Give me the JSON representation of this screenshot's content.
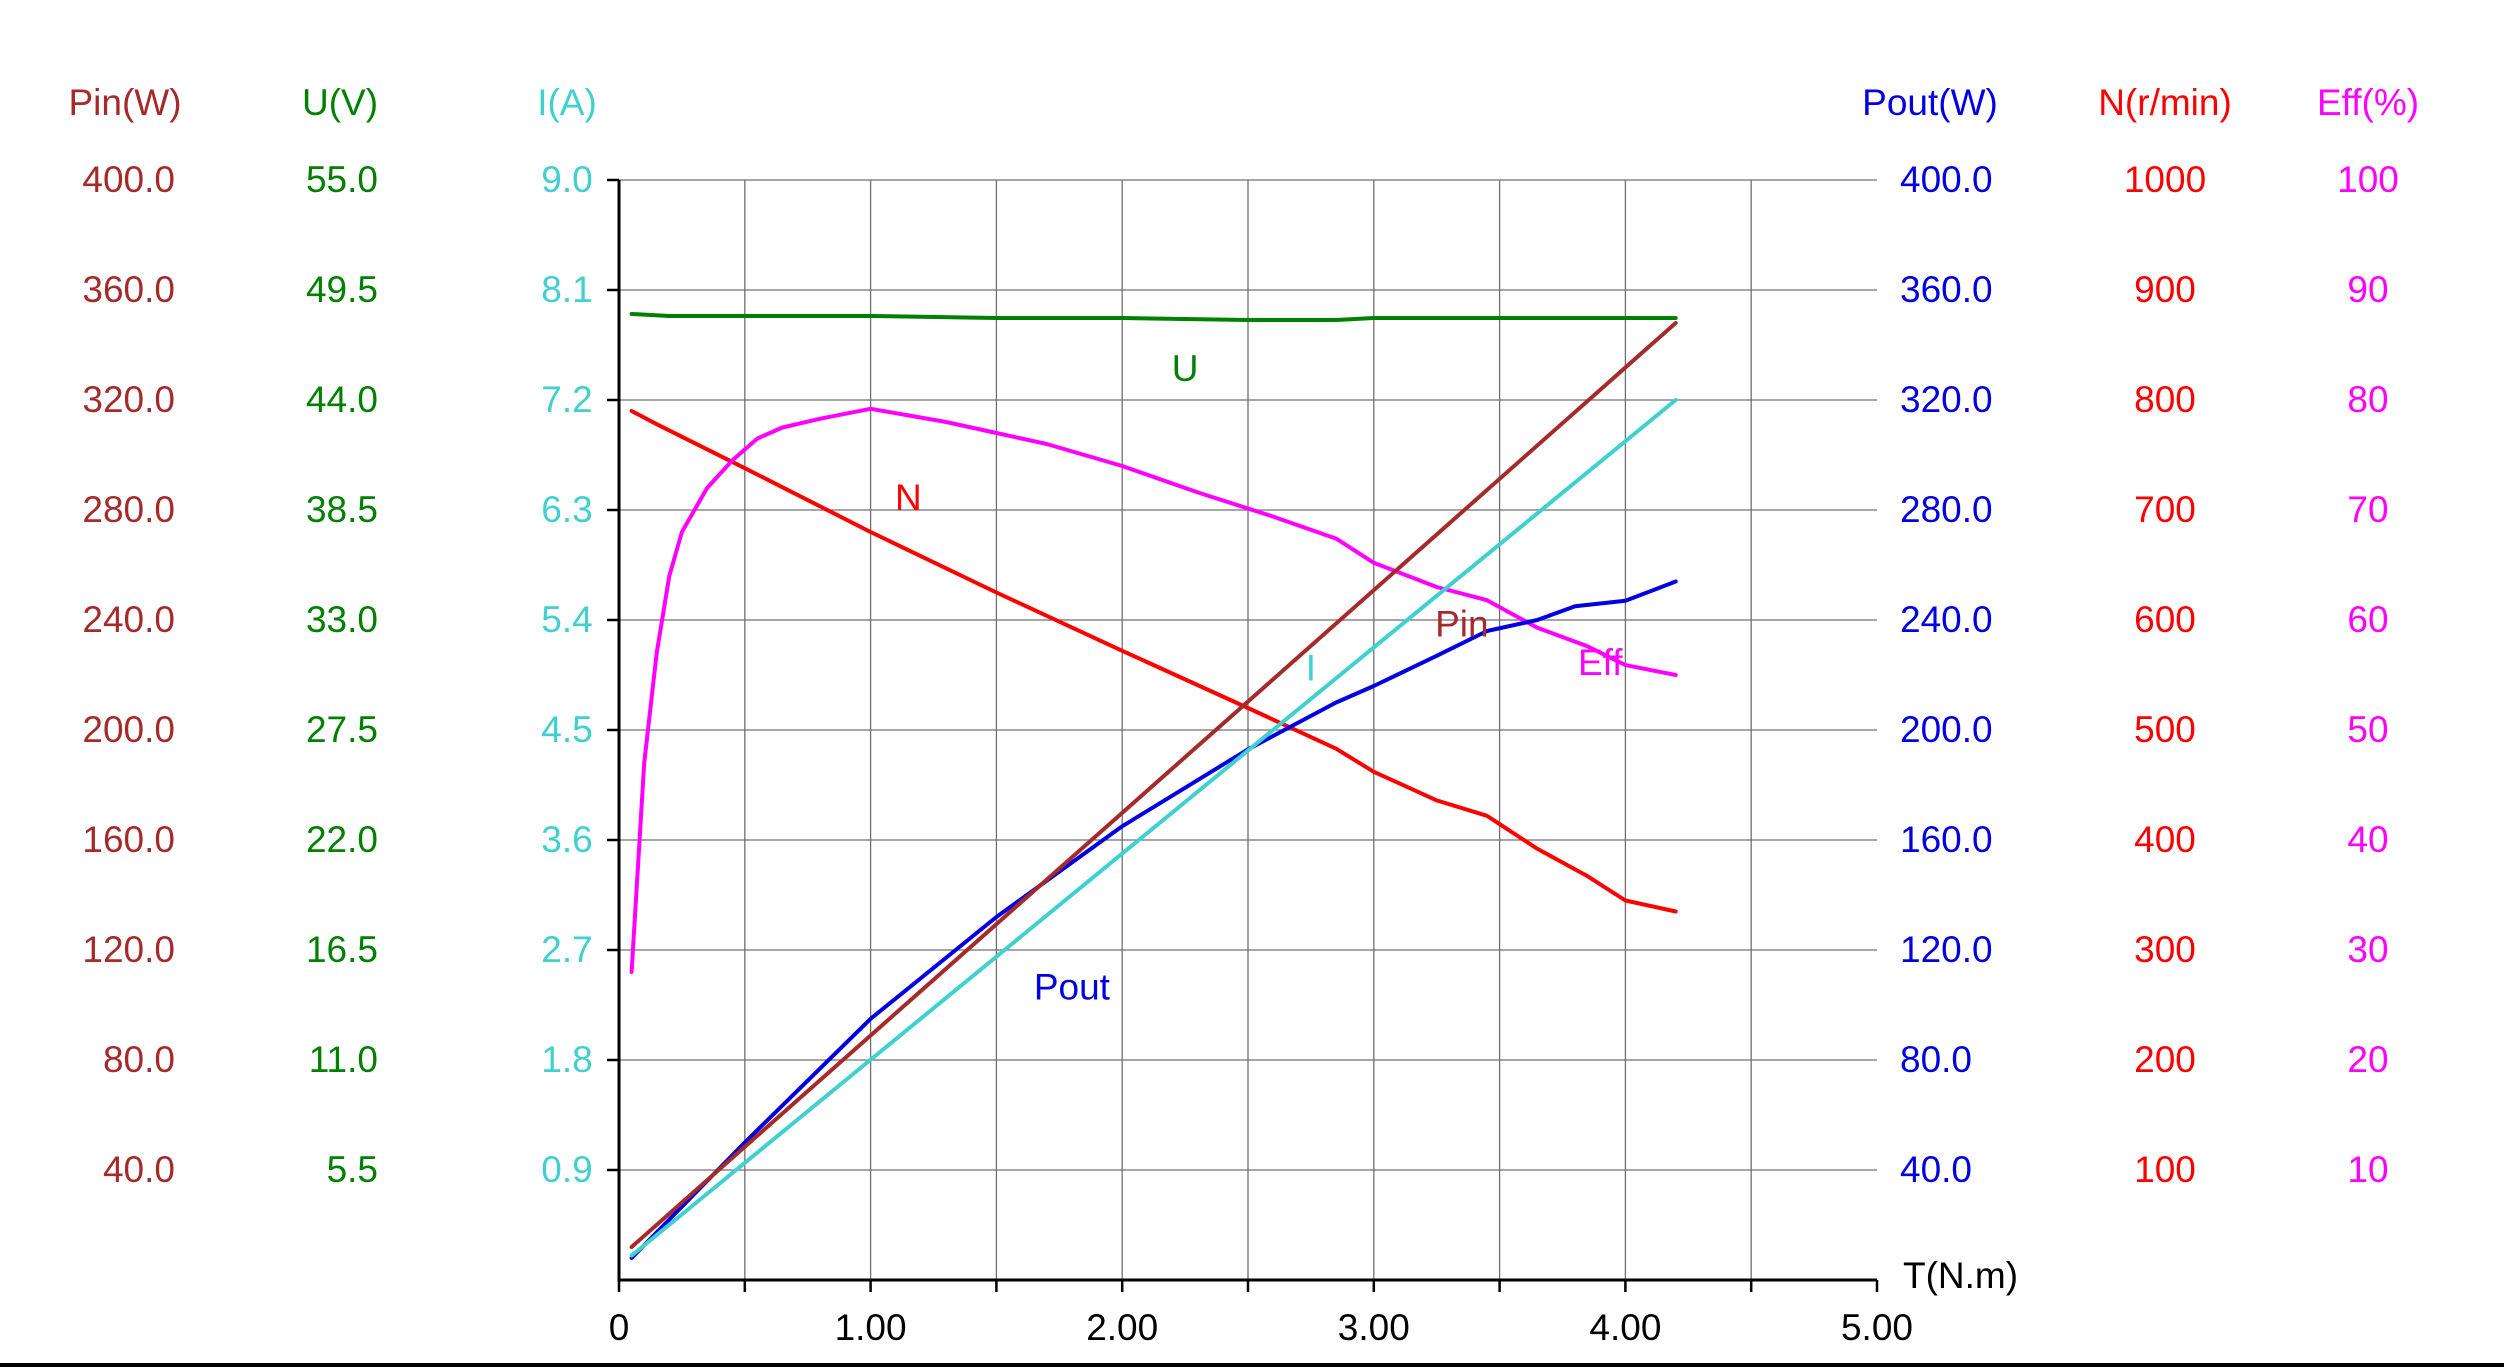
{
  "chart_data": {
    "type": "line",
    "xlabel": "T(N.m)",
    "xlim": [
      0,
      5
    ],
    "x_ticks": [
      "0",
      "1.00",
      "2.00",
      "3.00",
      "4.00",
      "5.00"
    ],
    "axes": [
      {
        "id": "pin",
        "label": "Pin(W)",
        "color": "#a52a2a",
        "side": "left",
        "ticks": [
          "400.0",
          "360.0",
          "320.0",
          "280.0",
          "240.0",
          "200.0",
          "160.0",
          "120.0",
          "80.0",
          "40.0"
        ],
        "range": [
          0,
          400
        ]
      },
      {
        "id": "u",
        "label": "U(V)",
        "color": "#008000",
        "side": "left",
        "ticks": [
          "55.0",
          "49.5",
          "44.0",
          "38.5",
          "33.0",
          "27.5",
          "22.0",
          "16.5",
          "11.0",
          "5.5"
        ],
        "range": [
          0,
          55
        ]
      },
      {
        "id": "i",
        "label": "I(A)",
        "color": "#40d0d0",
        "side": "left",
        "ticks": [
          "9.0",
          "8.1",
          "7.2",
          "6.3",
          "5.4",
          "4.5",
          "3.6",
          "2.7",
          "1.8",
          "0.9"
        ],
        "range": [
          0,
          9
        ]
      },
      {
        "id": "pout",
        "label": "Pout(W)",
        "color": "#0000e0",
        "side": "right",
        "ticks": [
          "400.0",
          "360.0",
          "320.0",
          "280.0",
          "240.0",
          "200.0",
          "160.0",
          "120.0",
          "80.0",
          "40.0"
        ],
        "range": [
          0,
          400
        ]
      },
      {
        "id": "n",
        "label": "N(r/min)",
        "color": "#ff0000",
        "side": "right",
        "ticks": [
          "1000",
          "900",
          "800",
          "700",
          "600",
          "500",
          "400",
          "300",
          "200",
          "100"
        ],
        "range": [
          0,
          1000
        ]
      },
      {
        "id": "eff",
        "label": "Eff(%)",
        "color": "#ff00ff",
        "side": "right",
        "ticks": [
          "100",
          "90",
          "80",
          "70",
          "60",
          "50",
          "40",
          "30",
          "20",
          "10"
        ],
        "range": [
          0,
          100
        ]
      }
    ],
    "series": [
      {
        "name": "U",
        "axis": "u",
        "color": "#008000",
        "x": [
          0.05,
          0.2,
          0.5,
          1.0,
          1.5,
          2.0,
          2.5,
          2.85,
          3.0,
          3.5,
          4.0,
          4.2
        ],
        "y": [
          48.3,
          48.2,
          48.2,
          48.2,
          48.1,
          48.1,
          48.0,
          48.0,
          48.1,
          48.1,
          48.1,
          48.1
        ]
      },
      {
        "name": "N",
        "axis": "n",
        "color": "#ff0000",
        "x": [
          0.05,
          0.15,
          0.5,
          1.0,
          1.5,
          2.0,
          2.5,
          2.85,
          3.0,
          3.25,
          3.45,
          3.65,
          3.85,
          4.0,
          4.2
        ],
        "y": [
          790,
          778,
          738,
          680,
          625,
          572,
          520,
          483,
          462,
          436,
          422,
          392,
          367,
          345,
          335
        ]
      },
      {
        "name": "Eff",
        "axis": "eff",
        "color": "#ff00ff",
        "x": [
          0.05,
          0.1,
          0.15,
          0.2,
          0.25,
          0.35,
          0.45,
          0.55,
          0.65,
          0.8,
          1.0,
          1.15,
          1.3,
          1.5,
          1.7,
          2.0,
          2.3,
          2.6,
          2.85,
          3.0,
          3.25,
          3.45,
          3.65,
          3.85,
          4.0,
          4.2
        ],
        "y": [
          28,
          47,
          57,
          64,
          68,
          72,
          74.5,
          76.5,
          77.5,
          78.3,
          79.2,
          78.6,
          78,
          77,
          76,
          74,
          71.6,
          69.4,
          67.4,
          65.2,
          63,
          61.8,
          59.3,
          57.6,
          55.9,
          55
        ]
      },
      {
        "name": "Pout",
        "axis": "pout",
        "color": "#0000e0",
        "x": [
          0.05,
          0.5,
          1.0,
          1.5,
          2.0,
          2.5,
          2.85,
          3.0,
          3.25,
          3.45,
          3.65,
          3.8,
          4.0,
          4.2
        ],
        "y": [
          8,
          50,
          95,
          132,
          165,
          193,
          210,
          216,
          227,
          236,
          240,
          245,
          247,
          254
        ]
      },
      {
        "name": "Pin",
        "axis": "pin",
        "color": "#a52a2a",
        "x": [
          0.05,
          4.2
        ],
        "y": [
          12,
          348
        ]
      },
      {
        "name": "I",
        "axis": "i",
        "color": "#40d0d0",
        "x": [
          0.05,
          4.2
        ],
        "y": [
          0.2,
          7.2
        ]
      }
    ],
    "annotations": [
      {
        "text": "U",
        "x": 2.25,
        "y": 327,
        "color": "#008000"
      },
      {
        "text": "N",
        "x": 1.15,
        "y": 280,
        "color": "#ff0000"
      },
      {
        "text": "Pin",
        "x": 3.35,
        "y": 234,
        "color": "#a52a2a"
      },
      {
        "text": "Eff",
        "x": 3.9,
        "y": 220,
        "color": "#ff00ff"
      },
      {
        "text": "I",
        "x": 2.75,
        "y": 218,
        "color": "#40d0d0"
      },
      {
        "text": "Pout",
        "x": 1.8,
        "y": 102,
        "color": "#0000e0"
      }
    ],
    "grid": true
  }
}
